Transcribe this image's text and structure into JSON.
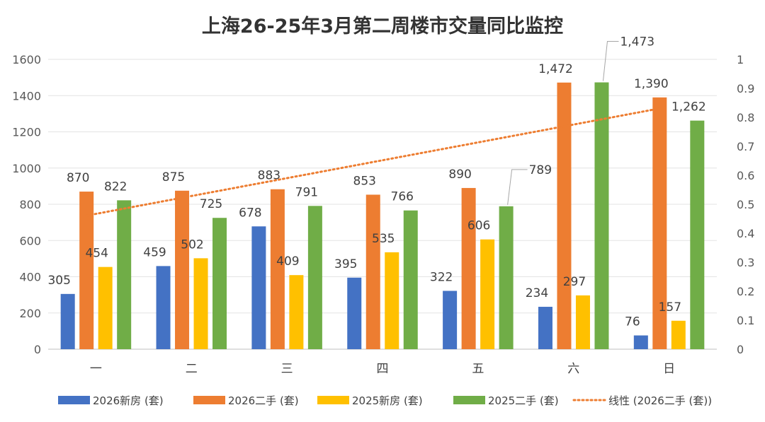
{
  "chart_data": {
    "type": "bar",
    "title": "上海26-25年3月第二周楼市交量同比监控",
    "categories": [
      "一",
      "二",
      "三",
      "四",
      "五",
      "六",
      "日"
    ],
    "series": [
      {
        "name": "2026新房 (套)",
        "color": "#4472C4",
        "values": [
          305,
          459,
          678,
          395,
          322,
          234,
          76
        ],
        "labels": [
          "305",
          "459",
          "678",
          "395",
          "322",
          "234",
          "76"
        ]
      },
      {
        "name": "2026二手 (套)",
        "color": "#ED7D31",
        "values": [
          870,
          875,
          883,
          853,
          890,
          1472,
          1390
        ],
        "labels": [
          "870",
          "875",
          "883",
          "853",
          "890",
          "1,472",
          "1,390"
        ]
      },
      {
        "name": "2025新房 (套)",
        "color": "#FFC000",
        "values": [
          454,
          502,
          409,
          535,
          606,
          297,
          157
        ],
        "labels": [
          "454",
          "502",
          "409",
          "535",
          "606",
          "297",
          "157"
        ]
      },
      {
        "name": "2025二手 (套)",
        "color": "#70AD47",
        "values": [
          822,
          725,
          791,
          766,
          789,
          1473,
          1262
        ],
        "labels": [
          "822",
          "725",
          "791",
          "766",
          "789",
          "1,473",
          "1,262"
        ]
      }
    ],
    "trendline": {
      "name": "线性 (2026二手 (套))",
      "color": "#ED7D31",
      "style": "dotted",
      "of_series": "2026二手 (套)"
    },
    "y_left": {
      "min": 0,
      "max": 1600,
      "ticks": [
        "0",
        "200",
        "400",
        "600",
        "800",
        "1000",
        "1200",
        "1400",
        "1600"
      ]
    },
    "y_right": {
      "min": 0,
      "max": 1,
      "ticks": [
        "0",
        "0.1",
        "0.2",
        "0.3",
        "0.4",
        "0.5",
        "0.6",
        "0.7",
        "0.8",
        "0.9",
        "1"
      ]
    },
    "grid": true,
    "legend": "bottom"
  }
}
